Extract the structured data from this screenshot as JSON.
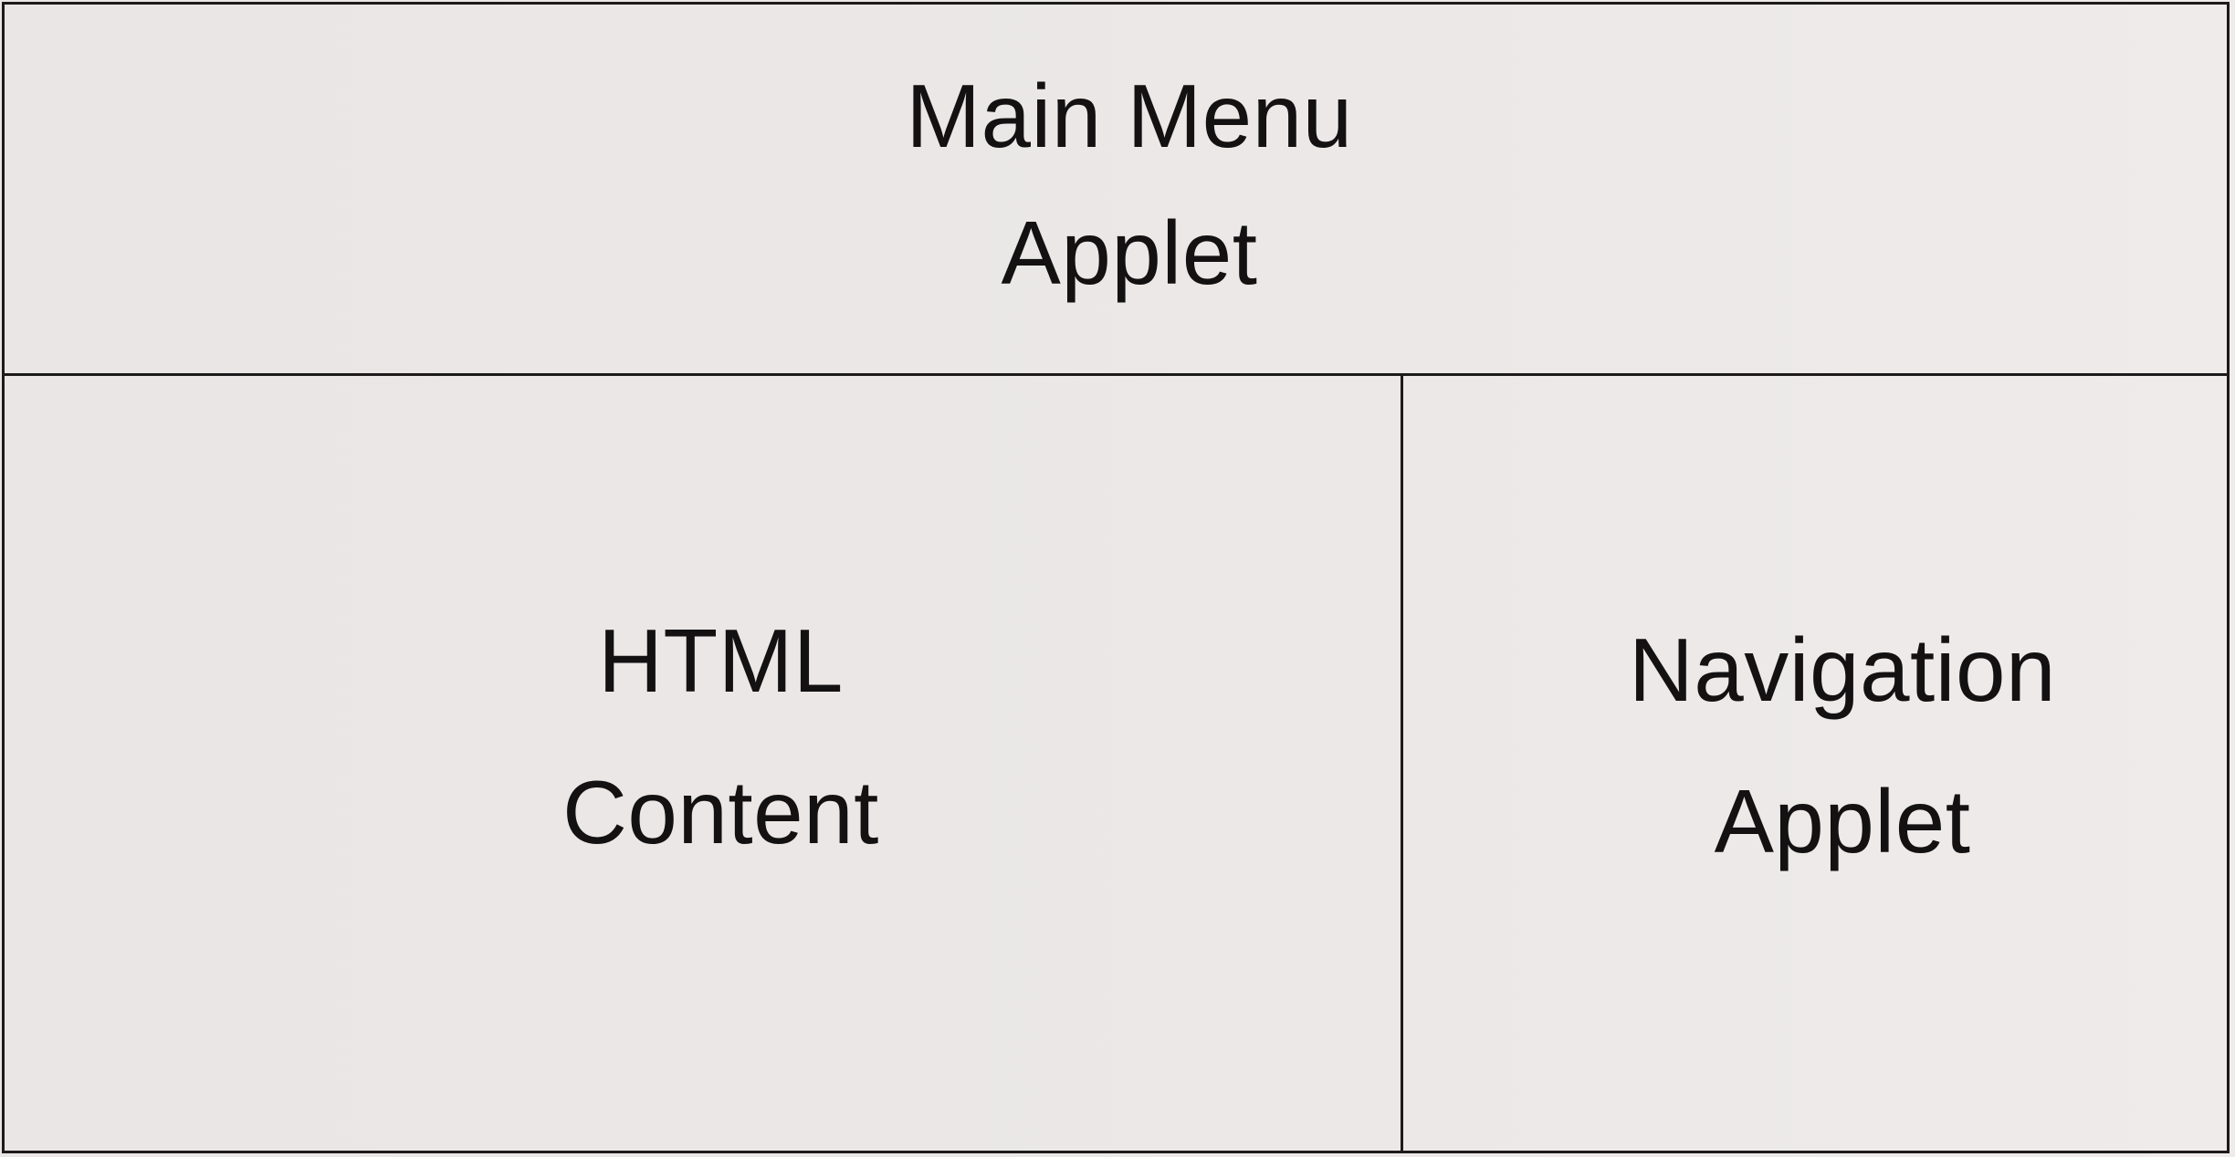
{
  "diagram": {
    "regions": {
      "main_menu": {
        "lines": [
          "Main Menu",
          "Applet"
        ]
      },
      "html_content": {
        "lines": [
          "HTML",
          "Content"
        ]
      },
      "navigation": {
        "lines": [
          "Navigation",
          "Applet"
        ]
      }
    },
    "colors": {
      "line": "#1d1a1b",
      "text": "#131112",
      "paper": "#ebe8e7"
    }
  }
}
